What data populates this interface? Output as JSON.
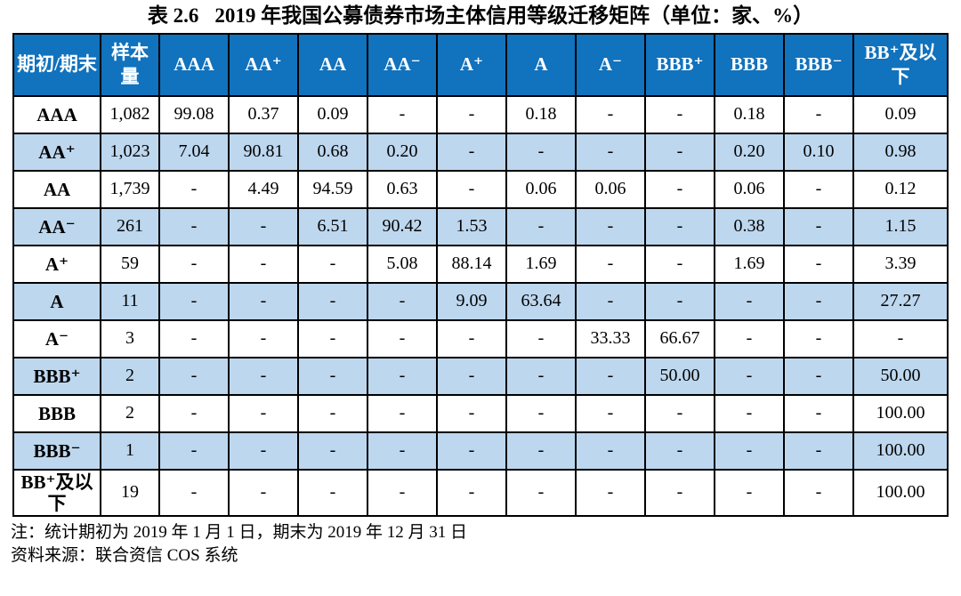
{
  "title": {
    "prefix": "表 2.6",
    "text": "2019 年我国公募债券市场主体信用等级迁移矩阵（单位：家、%）"
  },
  "colors": {
    "header_bg": "#1172BD",
    "header_text": "#FFFFFF",
    "alt_row_bg": "#BDD7EE",
    "border": "#000000"
  },
  "table": {
    "columns": [
      "期初/期末",
      "样本量",
      "AAA",
      "AA⁺",
      "AA",
      "AA⁻",
      "A⁺",
      "A",
      "A⁻",
      "BBB⁺",
      "BBB",
      "BBB⁻",
      "BB⁺及以下"
    ],
    "rows": [
      {
        "label": "AAA",
        "sample": "1,082",
        "values": [
          "99.08",
          "0.37",
          "0.09",
          "-",
          "-",
          "0.18",
          "-",
          "-",
          "0.18",
          "-",
          "0.09"
        ]
      },
      {
        "label": "AA⁺",
        "sample": "1,023",
        "values": [
          "7.04",
          "90.81",
          "0.68",
          "0.20",
          "-",
          "-",
          "-",
          "-",
          "0.20",
          "0.10",
          "0.98"
        ]
      },
      {
        "label": "AA",
        "sample": "1,739",
        "values": [
          "-",
          "4.49",
          "94.59",
          "0.63",
          "-",
          "0.06",
          "0.06",
          "-",
          "0.06",
          "-",
          "0.12"
        ]
      },
      {
        "label": "AA⁻",
        "sample": "261",
        "values": [
          "-",
          "-",
          "6.51",
          "90.42",
          "1.53",
          "-",
          "-",
          "-",
          "0.38",
          "-",
          "1.15"
        ]
      },
      {
        "label": "A⁺",
        "sample": "59",
        "values": [
          "-",
          "-",
          "-",
          "5.08",
          "88.14",
          "1.69",
          "-",
          "-",
          "1.69",
          "-",
          "3.39"
        ]
      },
      {
        "label": "A",
        "sample": "11",
        "values": [
          "-",
          "-",
          "-",
          "-",
          "9.09",
          "63.64",
          "-",
          "-",
          "-",
          "-",
          "27.27"
        ]
      },
      {
        "label": "A⁻",
        "sample": "3",
        "values": [
          "-",
          "-",
          "-",
          "-",
          "-",
          "-",
          "33.33",
          "66.67",
          "-",
          "-",
          "-"
        ]
      },
      {
        "label": "BBB⁺",
        "sample": "2",
        "values": [
          "-",
          "-",
          "-",
          "-",
          "-",
          "-",
          "-",
          "50.00",
          "-",
          "-",
          "50.00"
        ]
      },
      {
        "label": "BBB",
        "sample": "2",
        "values": [
          "-",
          "-",
          "-",
          "-",
          "-",
          "-",
          "-",
          "-",
          "-",
          "-",
          "100.00"
        ]
      },
      {
        "label": "BBB⁻",
        "sample": "1",
        "values": [
          "-",
          "-",
          "-",
          "-",
          "-",
          "-",
          "-",
          "-",
          "-",
          "-",
          "100.00"
        ]
      },
      {
        "label": "BB⁺及以下",
        "sample": "19",
        "values": [
          "-",
          "-",
          "-",
          "-",
          "-",
          "-",
          "-",
          "-",
          "-",
          "-",
          "100.00"
        ]
      }
    ]
  },
  "notes": [
    "注：统计期初为 2019 年 1 月 1 日，期末为 2019 年 12 月 31 日",
    "资料来源：联合资信 COS 系统"
  ]
}
